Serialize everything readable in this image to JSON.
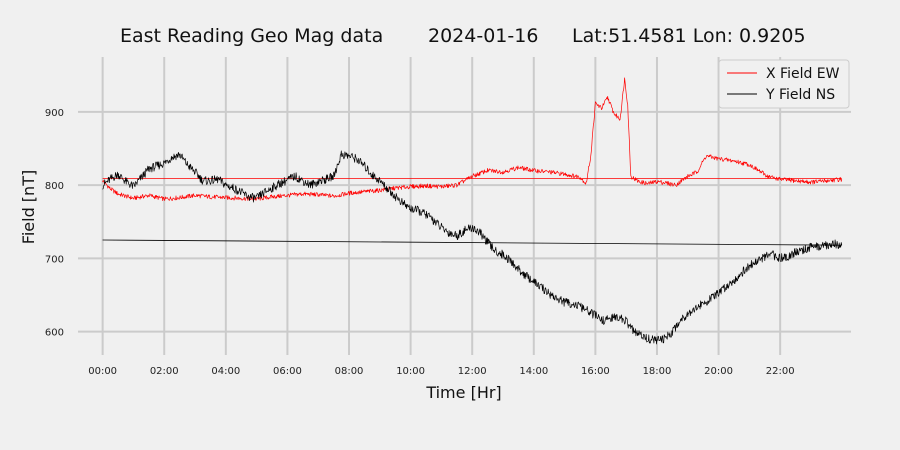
{
  "chart_data": {
    "type": "line",
    "title": {
      "station": "East Reading Geo Mag data",
      "date": "2024-01-16",
      "location": "Lat:51.4581  Lon: 0.9205"
    },
    "xlabel": "Time  [Hr]",
    "ylabel": "Field  [nT]",
    "x_unit": "hours",
    "xlim": [
      -0.8,
      24.3
    ],
    "ylim": [
      568,
      975
    ],
    "x_ticks": [
      0,
      2,
      4,
      6,
      8,
      10,
      12,
      14,
      16,
      18,
      20,
      22
    ],
    "x_tick_labels": [
      "00:00",
      "02:00",
      "04:00",
      "06:00",
      "08:00",
      "10:00",
      "12:00",
      "14:00",
      "16:00",
      "18:00",
      "20:00",
      "22:00"
    ],
    "y_ticks": [
      600,
      700,
      800,
      900
    ],
    "y_tick_labels": [
      "600",
      "700",
      "800",
      "900"
    ],
    "grid": true,
    "legend": {
      "position": "top-right"
    },
    "series": [
      {
        "name": "X Field EW",
        "color": "#ff0000",
        "points": [
          [
            0,
            806
          ],
          [
            0.25,
            795
          ],
          [
            0.5,
            788
          ],
          [
            1,
            782
          ],
          [
            1.5,
            786
          ],
          [
            2,
            781
          ],
          [
            2.5,
            783
          ],
          [
            3,
            786
          ],
          [
            3.5,
            784
          ],
          [
            4,
            783
          ],
          [
            4.5,
            782
          ],
          [
            5,
            781
          ],
          [
            5.5,
            784
          ],
          [
            6,
            786
          ],
          [
            6.5,
            788
          ],
          [
            7,
            787
          ],
          [
            7.5,
            785
          ],
          [
            8,
            789
          ],
          [
            8.5,
            791
          ],
          [
            9,
            793
          ],
          [
            9.5,
            796
          ],
          [
            10,
            798
          ],
          [
            10.5,
            799
          ],
          [
            11,
            798
          ],
          [
            11.5,
            800
          ],
          [
            12,
            812
          ],
          [
            12.5,
            820
          ],
          [
            13,
            818
          ],
          [
            13.5,
            824
          ],
          [
            14,
            820
          ],
          [
            14.5,
            818
          ],
          [
            15,
            815
          ],
          [
            15.5,
            811
          ],
          [
            15.7,
            802
          ],
          [
            15.85,
            840
          ],
          [
            16,
            912
          ],
          [
            16.2,
            905
          ],
          [
            16.4,
            920
          ],
          [
            16.6,
            898
          ],
          [
            16.8,
            890
          ],
          [
            16.95,
            945
          ],
          [
            17.05,
            910
          ],
          [
            17.15,
            812
          ],
          [
            17.4,
            805
          ],
          [
            17.7,
            802
          ],
          [
            18,
            805
          ],
          [
            18.3,
            803
          ],
          [
            18.6,
            800
          ],
          [
            19,
            812
          ],
          [
            19.3,
            818
          ],
          [
            19.6,
            840
          ],
          [
            20,
            836
          ],
          [
            20.5,
            833
          ],
          [
            21,
            828
          ],
          [
            21.3,
            820
          ],
          [
            21.6,
            812
          ],
          [
            22,
            808
          ],
          [
            22.5,
            806
          ],
          [
            23,
            804
          ],
          [
            23.5,
            806
          ],
          [
            24,
            808
          ]
        ]
      },
      {
        "name": "Y Field NS",
        "color": "#000000",
        "points": [
          [
            0,
            800
          ],
          [
            0.25,
            808
          ],
          [
            0.5,
            815
          ],
          [
            0.75,
            805
          ],
          [
            1,
            798
          ],
          [
            1.25,
            810
          ],
          [
            1.5,
            822
          ],
          [
            1.75,
            826
          ],
          [
            2,
            830
          ],
          [
            2.25,
            838
          ],
          [
            2.5,
            842
          ],
          [
            2.75,
            828
          ],
          [
            3,
            818
          ],
          [
            3.25,
            806
          ],
          [
            3.5,
            806
          ],
          [
            3.75,
            808
          ],
          [
            4,
            800
          ],
          [
            4.25,
            796
          ],
          [
            4.5,
            790
          ],
          [
            4.75,
            784
          ],
          [
            5,
            782
          ],
          [
            5.25,
            790
          ],
          [
            5.5,
            796
          ],
          [
            5.75,
            802
          ],
          [
            6,
            807
          ],
          [
            6.25,
            812
          ],
          [
            6.5,
            806
          ],
          [
            6.75,
            800
          ],
          [
            7,
            805
          ],
          [
            7.25,
            808
          ],
          [
            7.5,
            812
          ],
          [
            7.75,
            842
          ],
          [
            8,
            840
          ],
          [
            8.25,
            836
          ],
          [
            8.5,
            826
          ],
          [
            8.75,
            814
          ],
          [
            9,
            806
          ],
          [
            9.25,
            795
          ],
          [
            9.5,
            785
          ],
          [
            9.75,
            775
          ],
          [
            10,
            768
          ],
          [
            10.25,
            765
          ],
          [
            10.5,
            760
          ],
          [
            10.75,
            752
          ],
          [
            11,
            742
          ],
          [
            11.25,
            735
          ],
          [
            11.5,
            731
          ],
          [
            11.75,
            738
          ],
          [
            12,
            742
          ],
          [
            12.25,
            735
          ],
          [
            12.5,
            722
          ],
          [
            12.75,
            710
          ],
          [
            13,
            705
          ],
          [
            13.25,
            696
          ],
          [
            13.5,
            685
          ],
          [
            13.75,
            676
          ],
          [
            14,
            668
          ],
          [
            14.25,
            660
          ],
          [
            14.5,
            652
          ],
          [
            14.75,
            645
          ],
          [
            15,
            640
          ],
          [
            15.25,
            638
          ],
          [
            15.5,
            634
          ],
          [
            15.75,
            628
          ],
          [
            16,
            622
          ],
          [
            16.25,
            615
          ],
          [
            16.5,
            618
          ],
          [
            16.75,
            620
          ],
          [
            17,
            614
          ],
          [
            17.25,
            600
          ],
          [
            17.5,
            594
          ],
          [
            17.75,
            590
          ],
          [
            18,
            588
          ],
          [
            18.25,
            590
          ],
          [
            18.5,
            600
          ],
          [
            18.75,
            615
          ],
          [
            19,
            625
          ],
          [
            19.25,
            632
          ],
          [
            19.5,
            638
          ],
          [
            19.75,
            645
          ],
          [
            20,
            652
          ],
          [
            20.25,
            662
          ],
          [
            20.5,
            670
          ],
          [
            20.75,
            680
          ],
          [
            21,
            690
          ],
          [
            21.25,
            696
          ],
          [
            21.5,
            702
          ],
          [
            21.75,
            705
          ],
          [
            22,
            700
          ],
          [
            22.25,
            703
          ],
          [
            22.5,
            708
          ],
          [
            22.75,
            712
          ],
          [
            23,
            715
          ],
          [
            23.25,
            716
          ],
          [
            23.5,
            718
          ],
          [
            23.75,
            720
          ],
          [
            24,
            718
          ]
        ]
      }
    ],
    "reference_lines": [
      {
        "series": "X Field EW",
        "color": "#ff0000",
        "points": [
          [
            0,
            809
          ],
          [
            24,
            809
          ]
        ]
      },
      {
        "series": "Y Field NS",
        "color": "#000000",
        "points": [
          [
            0,
            725
          ],
          [
            24,
            718
          ]
        ]
      }
    ]
  }
}
